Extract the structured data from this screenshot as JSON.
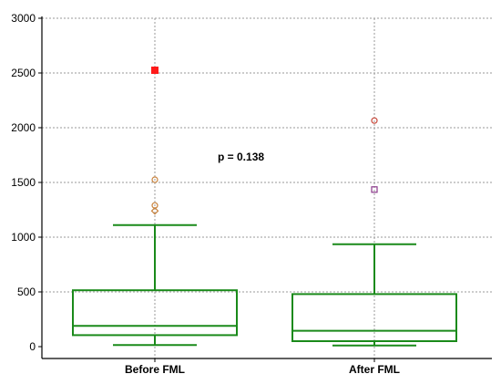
{
  "chart_data": {
    "type": "box",
    "title": "",
    "xlabel": "",
    "ylabel": "",
    "ylim": [
      0,
      3000
    ],
    "yticks": [
      0,
      500,
      1000,
      1500,
      2000,
      2500,
      3000
    ],
    "grid": true,
    "categories": [
      "Before FML",
      "After FML"
    ],
    "boxes": [
      {
        "category": "Before FML",
        "whisker_low": 15,
        "q1": 105,
        "median": 190,
        "q3": 515,
        "whisker_high": 1110,
        "outliers": [
          {
            "value": 1240,
            "marker": "diamond-open",
            "color": "#c8823c"
          },
          {
            "value": 1290,
            "marker": "circle-open",
            "color": "#c8823c"
          },
          {
            "value": 1525,
            "marker": "circle-open",
            "color": "#c8823c"
          },
          {
            "value": 2525,
            "marker": "square-filled",
            "color": "#ff1a1a"
          }
        ]
      },
      {
        "category": "After FML",
        "whisker_low": 10,
        "q1": 50,
        "median": 145,
        "q3": 480,
        "whisker_high": 935,
        "outliers": [
          {
            "value": 1435,
            "marker": "square-open",
            "color": "#8b3a8b"
          },
          {
            "value": 2065,
            "marker": "circle-open",
            "color": "#c84a3c"
          }
        ]
      }
    ],
    "annotations": [
      {
        "text": "p = 0.138"
      }
    ],
    "colors": {
      "box": "#1a8a1a",
      "grid": "#9a9a9a",
      "axis": "#000000"
    }
  }
}
